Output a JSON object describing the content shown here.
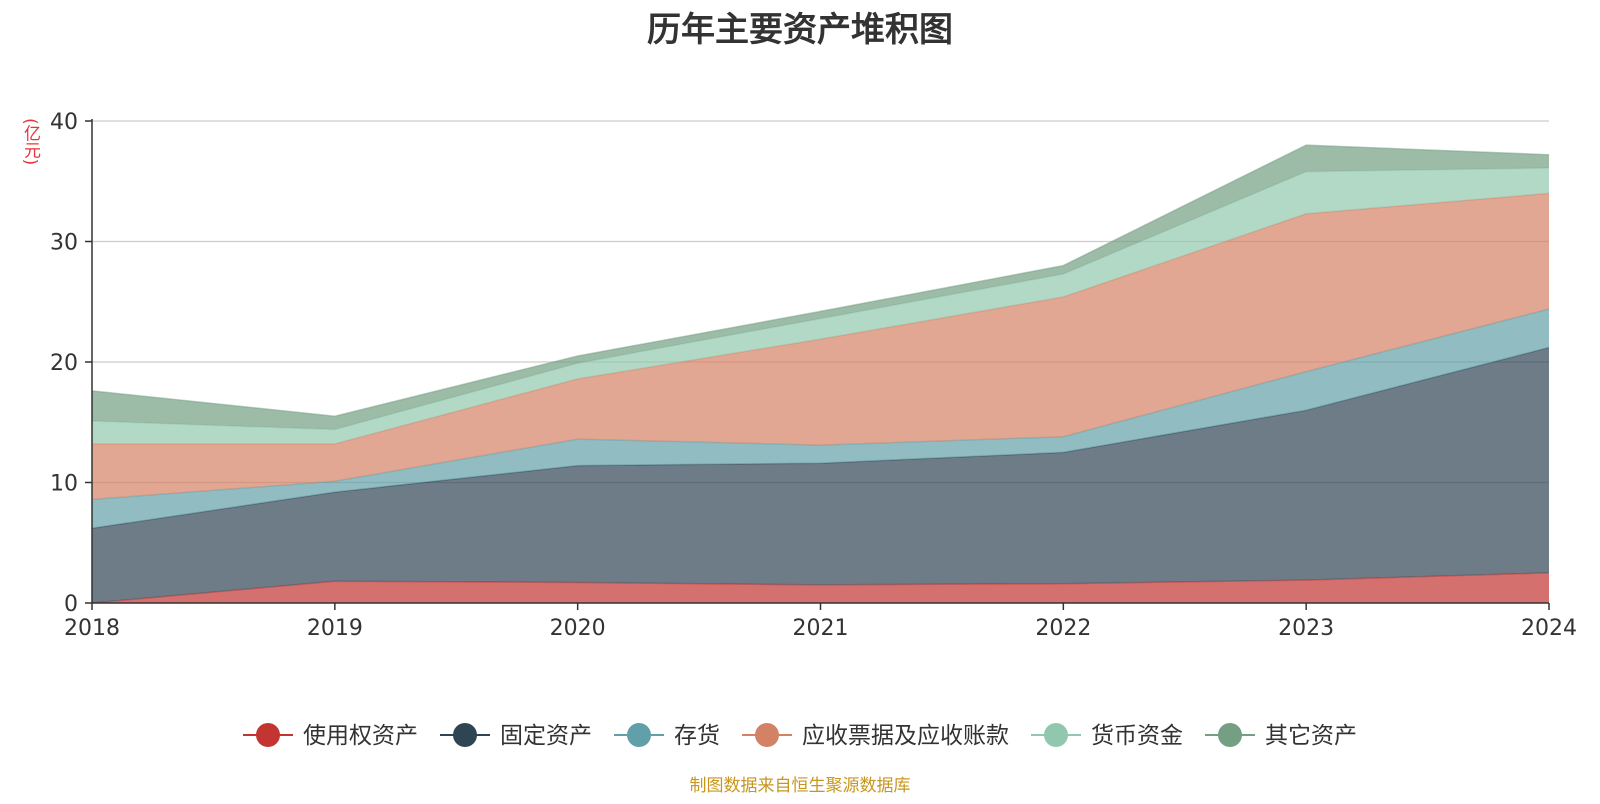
{
  "chart_data": {
    "type": "area",
    "stacked": true,
    "title": "历年主要资产堆积图",
    "ylabel": "(亿元)",
    "source": "制图数据来自恒生聚源数据库",
    "x": [
      "2018",
      "2019",
      "2020",
      "2021",
      "2022",
      "2023",
      "2024"
    ],
    "ylim": [
      0,
      40
    ],
    "yticks": [
      "0",
      "10",
      "20",
      "30",
      "40"
    ],
    "grid": true,
    "legend_position": "bottom",
    "series": [
      {
        "name": "使用权资产",
        "color": "#c23531",
        "values": [
          0,
          1.8,
          1.7,
          1.5,
          1.6,
          1.9,
          2.5
        ]
      },
      {
        "name": "固定资产",
        "color": "#2f4554",
        "values": [
          6.2,
          7.4,
          9.7,
          10.1,
          10.9,
          14.1,
          18.7
        ]
      },
      {
        "name": "存货",
        "color": "#61a0a8",
        "values": [
          2.4,
          0.9,
          2.2,
          1.5,
          1.3,
          3.2,
          3.2
        ]
      },
      {
        "name": "应收票据及应收账款",
        "color": "#d48265",
        "values": [
          4.6,
          3.1,
          5.0,
          8.8,
          11.6,
          13.1,
          9.6
        ]
      },
      {
        "name": "货币资金",
        "color": "#91c7ae",
        "values": [
          1.9,
          1.2,
          1.3,
          1.7,
          1.9,
          3.5,
          2.1
        ]
      },
      {
        "name": "其它资产",
        "color": "#749f83",
        "values": [
          2.5,
          1.1,
          0.6,
          0.6,
          0.7,
          2.2,
          1.1
        ]
      }
    ]
  }
}
